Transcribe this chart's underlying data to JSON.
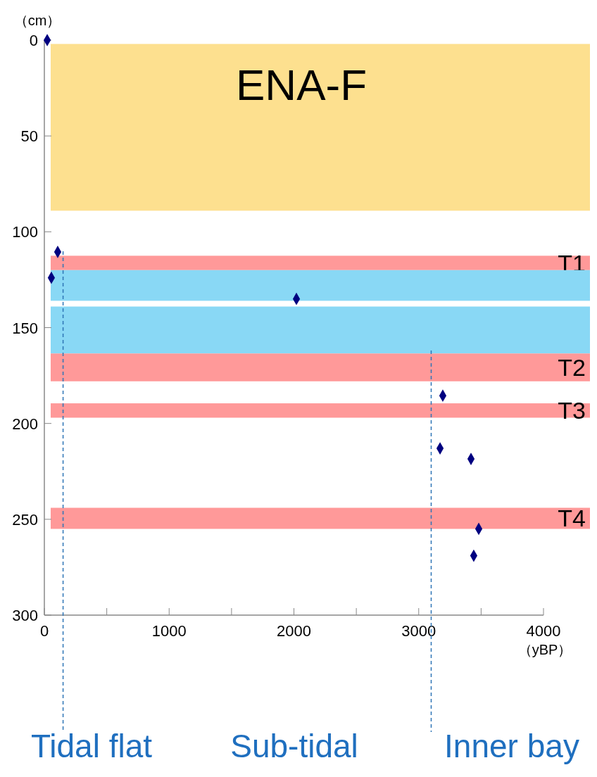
{
  "chart_data": {
    "type": "scatter",
    "xlabel": "（yBP）",
    "ylabel": "（cm）",
    "x": [
      23,
      107,
      56,
      2020,
      3193,
      3171,
      3419,
      3481,
      3441
    ],
    "values": [
      0,
      110.5,
      124,
      135,
      185.5,
      213,
      218.5,
      255,
      269
    ],
    "color": "#000080",
    "marker": "diamond",
    "xlim": [
      0,
      4000
    ],
    "xticks": [
      0,
      {
        "value": 500,
        "label": null
      },
      1000,
      {
        "value": 1500,
        "label": null
      },
      2000,
      {
        "value": 2500,
        "label": null
      },
      3000,
      {
        "value": 3500,
        "label": null
      },
      4000
    ],
    "ylim": [
      300,
      0
    ],
    "yticks": [
      0,
      50,
      100,
      150,
      200,
      250,
      300
    ],
    "grid": false,
    "bands": [
      {
        "axis": "y",
        "from": 2,
        "to": 89,
        "label": "ENA-F",
        "color": "#fde08f"
      },
      {
        "axis": "y",
        "from": 112.5,
        "to": 120,
        "label": "T1",
        "color": "#ff9999"
      },
      {
        "axis": "y",
        "from": 120,
        "to": 136,
        "color": "#89d8f5"
      },
      {
        "axis": "y",
        "from": 139,
        "to": 163.5,
        "color": "#89d8f5"
      },
      {
        "axis": "y",
        "from": 163.5,
        "to": 178,
        "label": "T2",
        "color": "#ff9999"
      },
      {
        "axis": "y",
        "from": 189.5,
        "to": 197,
        "label": "T3",
        "color": "#ff9999"
      },
      {
        "axis": "y",
        "from": 244,
        "to": 255,
        "label": "T4",
        "color": "#ff9999"
      }
    ],
    "ref_lines": [
      {
        "axis": "x",
        "value": 150,
        "color": "#2e75b6",
        "line_style": "dashed"
      },
      {
        "axis": "x",
        "value": 3100,
        "color": "#2e75b6",
        "line_style": "dashed"
      }
    ],
    "annotations": [
      "Tidal flat",
      "Sub-tidal",
      "Inner bay"
    ]
  }
}
